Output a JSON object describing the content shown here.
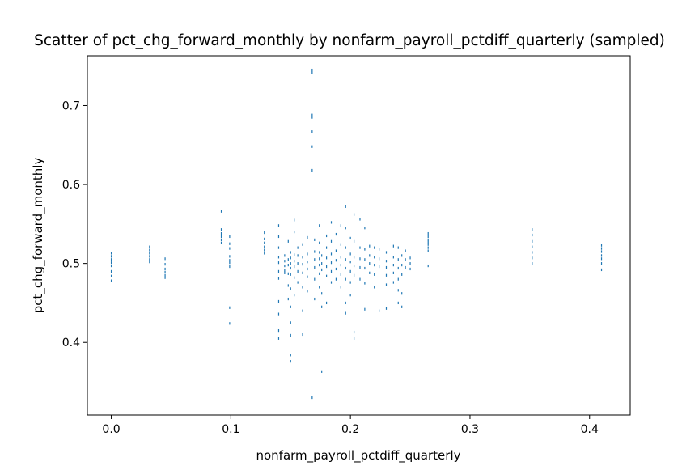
{
  "chart_data": {
    "type": "scatter",
    "title": "Scatter of pct_chg_forward_monthly by nonfarm_payroll_pctdiff_quarterly (sampled)",
    "xlabel": "nonfarm_payroll_pctdiff_quarterly",
    "ylabel": "pct_chg_forward_monthly",
    "xlim": [
      -0.02,
      0.434
    ],
    "ylim": [
      0.308,
      0.763
    ],
    "xticks": [
      0.0,
      0.1,
      0.2,
      0.3,
      0.4
    ],
    "xtick_labels": [
      "0.0",
      "0.1",
      "0.2",
      "0.3",
      "0.4"
    ],
    "yticks": [
      0.4,
      0.5,
      0.6,
      0.7
    ],
    "ytick_labels": [
      "0.4",
      "0.5",
      "0.6",
      "0.7"
    ],
    "grid": false,
    "marker_color": "#1f77b4",
    "series": [
      {
        "values": [
          [
            0.0,
            0.513
          ],
          [
            0.0,
            0.509
          ],
          [
            0.0,
            0.505
          ],
          [
            0.0,
            0.501
          ],
          [
            0.0,
            0.497
          ],
          [
            0.0,
            0.49
          ],
          [
            0.0,
            0.484
          ],
          [
            0.0,
            0.478
          ],
          [
            0.032,
            0.521
          ],
          [
            0.032,
            0.517
          ],
          [
            0.032,
            0.513
          ],
          [
            0.032,
            0.509
          ],
          [
            0.032,
            0.505
          ],
          [
            0.032,
            0.502
          ],
          [
            0.045,
            0.506
          ],
          [
            0.045,
            0.499
          ],
          [
            0.045,
            0.493
          ],
          [
            0.045,
            0.489
          ],
          [
            0.045,
            0.485
          ],
          [
            0.045,
            0.482
          ],
          [
            0.092,
            0.566
          ],
          [
            0.092,
            0.543
          ],
          [
            0.092,
            0.538
          ],
          [
            0.092,
            0.534
          ],
          [
            0.092,
            0.53
          ],
          [
            0.092,
            0.526
          ],
          [
            0.099,
            0.534
          ],
          [
            0.099,
            0.525
          ],
          [
            0.099,
            0.519
          ],
          [
            0.099,
            0.509
          ],
          [
            0.099,
            0.504
          ],
          [
            0.099,
            0.501
          ],
          [
            0.099,
            0.496
          ],
          [
            0.099,
            0.444
          ],
          [
            0.099,
            0.424
          ],
          [
            0.128,
            0.539
          ],
          [
            0.128,
            0.531
          ],
          [
            0.128,
            0.526
          ],
          [
            0.128,
            0.521
          ],
          [
            0.128,
            0.517
          ],
          [
            0.128,
            0.513
          ],
          [
            0.14,
            0.548
          ],
          [
            0.14,
            0.534
          ],
          [
            0.14,
            0.52
          ],
          [
            0.14,
            0.508
          ],
          [
            0.14,
            0.501
          ],
          [
            0.14,
            0.49
          ],
          [
            0.14,
            0.481
          ],
          [
            0.14,
            0.452
          ],
          [
            0.14,
            0.436
          ],
          [
            0.14,
            0.415
          ],
          [
            0.14,
            0.405
          ],
          [
            0.145,
            0.51
          ],
          [
            0.145,
            0.503
          ],
          [
            0.145,
            0.497
          ],
          [
            0.145,
            0.491
          ],
          [
            0.145,
            0.488
          ],
          [
            0.148,
            0.528
          ],
          [
            0.148,
            0.505
          ],
          [
            0.148,
            0.498
          ],
          [
            0.148,
            0.487
          ],
          [
            0.148,
            0.472
          ],
          [
            0.148,
            0.455
          ],
          [
            0.15,
            0.514
          ],
          [
            0.15,
            0.507
          ],
          [
            0.15,
            0.5
          ],
          [
            0.15,
            0.494
          ],
          [
            0.15,
            0.486
          ],
          [
            0.15,
            0.468
          ],
          [
            0.15,
            0.445
          ],
          [
            0.15,
            0.425
          ],
          [
            0.15,
            0.409
          ],
          [
            0.15,
            0.384
          ],
          [
            0.15,
            0.376
          ],
          [
            0.153,
            0.555
          ],
          [
            0.153,
            0.54
          ],
          [
            0.153,
            0.511
          ],
          [
            0.153,
            0.503
          ],
          [
            0.153,
            0.496
          ],
          [
            0.153,
            0.482
          ],
          [
            0.153,
            0.46
          ],
          [
            0.156,
            0.52
          ],
          [
            0.156,
            0.51
          ],
          [
            0.156,
            0.5
          ],
          [
            0.156,
            0.49
          ],
          [
            0.156,
            0.476
          ],
          [
            0.16,
            0.524
          ],
          [
            0.16,
            0.508
          ],
          [
            0.16,
            0.499
          ],
          [
            0.16,
            0.488
          ],
          [
            0.16,
            0.47
          ],
          [
            0.16,
            0.44
          ],
          [
            0.16,
            0.41
          ],
          [
            0.164,
            0.533
          ],
          [
            0.164,
            0.512
          ],
          [
            0.164,
            0.502
          ],
          [
            0.164,
            0.493
          ],
          [
            0.164,
            0.483
          ],
          [
            0.164,
            0.465
          ],
          [
            0.168,
            0.745
          ],
          [
            0.168,
            0.742
          ],
          [
            0.168,
            0.688
          ],
          [
            0.168,
            0.685
          ],
          [
            0.168,
            0.667
          ],
          [
            0.168,
            0.648
          ],
          [
            0.168,
            0.618
          ],
          [
            0.168,
            0.33
          ],
          [
            0.17,
            0.53
          ],
          [
            0.17,
            0.515
          ],
          [
            0.17,
            0.505
          ],
          [
            0.17,
            0.495
          ],
          [
            0.17,
            0.48
          ],
          [
            0.17,
            0.455
          ],
          [
            0.174,
            0.548
          ],
          [
            0.174,
            0.526
          ],
          [
            0.174,
            0.514
          ],
          [
            0.174,
            0.506
          ],
          [
            0.174,
            0.498
          ],
          [
            0.174,
            0.487
          ],
          [
            0.174,
            0.47
          ],
          [
            0.176,
            0.51
          ],
          [
            0.176,
            0.5
          ],
          [
            0.176,
            0.492
          ],
          [
            0.176,
            0.462
          ],
          [
            0.176,
            0.445
          ],
          [
            0.176,
            0.363
          ],
          [
            0.18,
            0.535
          ],
          [
            0.18,
            0.52
          ],
          [
            0.18,
            0.507
          ],
          [
            0.18,
            0.496
          ],
          [
            0.18,
            0.484
          ],
          [
            0.18,
            0.45
          ],
          [
            0.184,
            0.552
          ],
          [
            0.184,
            0.528
          ],
          [
            0.184,
            0.512
          ],
          [
            0.184,
            0.501
          ],
          [
            0.184,
            0.49
          ],
          [
            0.184,
            0.476
          ],
          [
            0.188,
            0.537
          ],
          [
            0.188,
            0.516
          ],
          [
            0.188,
            0.504
          ],
          [
            0.188,
            0.493
          ],
          [
            0.188,
            0.48
          ],
          [
            0.192,
            0.548
          ],
          [
            0.192,
            0.524
          ],
          [
            0.192,
            0.508
          ],
          [
            0.192,
            0.498
          ],
          [
            0.192,
            0.486
          ],
          [
            0.192,
            0.47
          ],
          [
            0.196,
            0.572
          ],
          [
            0.196,
            0.545
          ],
          [
            0.196,
            0.52
          ],
          [
            0.196,
            0.505
          ],
          [
            0.196,
            0.494
          ],
          [
            0.196,
            0.48
          ],
          [
            0.196,
            0.45
          ],
          [
            0.196,
            0.437
          ],
          [
            0.2,
            0.532
          ],
          [
            0.2,
            0.512
          ],
          [
            0.2,
            0.502
          ],
          [
            0.2,
            0.49
          ],
          [
            0.2,
            0.476
          ],
          [
            0.2,
            0.46
          ],
          [
            0.203,
            0.562
          ],
          [
            0.203,
            0.528
          ],
          [
            0.203,
            0.508
          ],
          [
            0.203,
            0.497
          ],
          [
            0.203,
            0.485
          ],
          [
            0.203,
            0.413
          ],
          [
            0.203,
            0.405
          ],
          [
            0.208,
            0.556
          ],
          [
            0.208,
            0.52
          ],
          [
            0.208,
            0.506
          ],
          [
            0.208,
            0.495
          ],
          [
            0.208,
            0.48
          ],
          [
            0.212,
            0.545
          ],
          [
            0.212,
            0.518
          ],
          [
            0.212,
            0.505
          ],
          [
            0.212,
            0.494
          ],
          [
            0.212,
            0.475
          ],
          [
            0.212,
            0.442
          ],
          [
            0.216,
            0.522
          ],
          [
            0.216,
            0.51
          ],
          [
            0.216,
            0.5
          ],
          [
            0.216,
            0.488
          ],
          [
            0.22,
            0.52
          ],
          [
            0.22,
            0.508
          ],
          [
            0.22,
            0.498
          ],
          [
            0.22,
            0.486
          ],
          [
            0.22,
            0.47
          ],
          [
            0.224,
            0.518
          ],
          [
            0.224,
            0.506
          ],
          [
            0.224,
            0.496
          ],
          [
            0.224,
            0.44
          ],
          [
            0.23,
            0.514
          ],
          [
            0.23,
            0.503
          ],
          [
            0.23,
            0.495
          ],
          [
            0.23,
            0.485
          ],
          [
            0.23,
            0.473
          ],
          [
            0.23,
            0.443
          ],
          [
            0.236,
            0.522
          ],
          [
            0.236,
            0.508
          ],
          [
            0.236,
            0.498
          ],
          [
            0.236,
            0.488
          ],
          [
            0.236,
            0.476
          ],
          [
            0.24,
            0.52
          ],
          [
            0.24,
            0.505
          ],
          [
            0.24,
            0.494
          ],
          [
            0.24,
            0.48
          ],
          [
            0.24,
            0.466
          ],
          [
            0.24,
            0.45
          ],
          [
            0.243,
            0.51
          ],
          [
            0.243,
            0.498
          ],
          [
            0.243,
            0.486
          ],
          [
            0.243,
            0.462
          ],
          [
            0.243,
            0.445
          ],
          [
            0.246,
            0.516
          ],
          [
            0.246,
            0.505
          ],
          [
            0.246,
            0.495
          ],
          [
            0.25,
            0.507
          ],
          [
            0.25,
            0.5
          ],
          [
            0.25,
            0.493
          ],
          [
            0.265,
            0.538
          ],
          [
            0.265,
            0.534
          ],
          [
            0.265,
            0.53
          ],
          [
            0.265,
            0.527
          ],
          [
            0.265,
            0.524
          ],
          [
            0.265,
            0.52
          ],
          [
            0.265,
            0.516
          ],
          [
            0.265,
            0.497
          ],
          [
            0.352,
            0.543
          ],
          [
            0.352,
            0.536
          ],
          [
            0.352,
            0.528
          ],
          [
            0.352,
            0.521
          ],
          [
            0.352,
            0.514
          ],
          [
            0.352,
            0.507
          ],
          [
            0.352,
            0.5
          ],
          [
            0.41,
            0.523
          ],
          [
            0.41,
            0.519
          ],
          [
            0.41,
            0.515
          ],
          [
            0.41,
            0.51
          ],
          [
            0.41,
            0.506
          ],
          [
            0.41,
            0.5
          ],
          [
            0.41,
            0.492
          ]
        ]
      }
    ]
  }
}
